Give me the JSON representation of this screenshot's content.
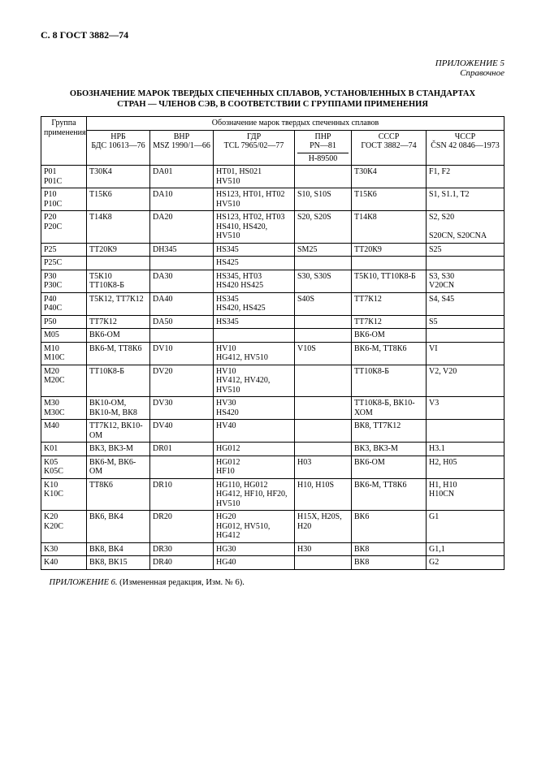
{
  "header": {
    "left": "С. 8 ГОСТ 3882—74",
    "appendix1": "ПРИЛОЖЕНИЕ 5",
    "appendix2": "Справочное",
    "title1": "ОБОЗНАЧЕНИЕ МАРОК ТВЕРДЫХ СПЕЧЕННЫХ СПЛАВОВ, УСТАНОВЛЕННЫХ В СТАНДАРТАХ",
    "title2": "СТРАН — ЧЛЕНОВ СЭВ, В СООТВЕТСТВИИ С ГРУППАМИ ПРИМЕНЕНИЯ"
  },
  "thead": {
    "group": "Группа применения",
    "top": "Обозначение марок твердых спеченных сплавов",
    "cols": [
      {
        "a": "НРБ",
        "b": "БДС 10613—76"
      },
      {
        "a": "ВНР",
        "b": "MSZ 1990/1—66"
      },
      {
        "a": "ГДР",
        "b": "TCL 7965/02—77"
      },
      {
        "a": "ПНР",
        "b": "PN—81",
        "c": "H-89500"
      },
      {
        "a": "СССР",
        "b": "ГОСТ 3882—74"
      },
      {
        "a": "ЧССР",
        "b": "ČSN 42 0846—1973"
      }
    ]
  },
  "rows": [
    [
      "P01\nP01С",
      "Т30К4",
      "DA01",
      "HT01, HS021\nHV510",
      "",
      "Т30К4",
      "F1, F2"
    ],
    [
      "P10\nP10С",
      "Т15К6",
      "DA10",
      "HS123, HT01, HT02\nHV510",
      "S10, S10S",
      "Т15К6",
      "S1, S1.1, T2"
    ],
    [
      "P20\nP20С",
      "Т14К8",
      "DA20",
      "HS123, HT02, HT03\nHS410, HS420, HV510",
      "S20, S20S",
      "Т14К8",
      "S2, S20\n\nS20CN, S20CNA"
    ],
    [
      "P25",
      "ТТ20К9",
      "DH345",
      "HS345",
      "SM25",
      "ТТ20К9",
      "S25"
    ],
    [
      "P25С",
      "",
      "",
      "HS425",
      "",
      "",
      ""
    ],
    [
      "P30\nP30С",
      "Т5К10\nТТ10К8-Б",
      "DA30",
      "HS345, HT03\nHS420 HS425",
      "S30, S30S",
      "Т5К10, ТТ10К8-Б",
      "S3, S30\nV20CN"
    ],
    [
      "P40\nP40С",
      "Т5К12, ТТ7К12",
      "DA40",
      "HS345\nHS420, HS425",
      "S40S",
      "ТТ7К12",
      "S4, S45"
    ],
    [
      "P50",
      "ТТ7К12",
      "DA50",
      "HS345",
      "",
      "ТТ7К12",
      "S5"
    ],
    [
      "M05",
      "ВК6-ОМ",
      "",
      "",
      "",
      "ВК6-ОМ",
      ""
    ],
    [
      "M10\nM10С",
      "ВК6-М, ТТ8К6",
      "DV10",
      "HV10\nHG412, HV510",
      "V10S",
      "ВК6-М, ТТ8К6",
      "VI"
    ],
    [
      "M20\nM20С",
      "ТТ10К8-Б",
      "DV20",
      "HV10\nHV412, HV420, HV510",
      "",
      "ТТ10К8-Б",
      "V2, V20"
    ],
    [
      "M30\nM30С",
      "ВК10-ОМ, ВК10-М, ВК8",
      "DV30",
      "HV30\nHS420",
      "",
      "ТТ10К8-Б, ВК10-ХОМ",
      "V3"
    ],
    [
      "M40",
      "ТТ7К12, ВК10-ОМ",
      "DV40",
      "HV40",
      "",
      "ВК8, ТТ7К12",
      ""
    ],
    [
      "K01",
      "ВК3, ВК3-М",
      "DR01",
      "HG012",
      "",
      "ВК3, ВК3-М",
      "H3.1"
    ],
    [
      "K05\nK05С",
      "ВК6-М, ВК6-ОМ",
      "",
      "HG012\nHF10",
      "H03",
      "ВК6-ОМ",
      "H2, H05"
    ],
    [
      "K10\nK10С",
      "ТТ8К6",
      "DR10",
      "HG110, HG012\nHG412, HF10, HF20, HV510",
      "H10, H10S",
      "ВК6-М, ТТ8К6",
      "H1, H10\nH10CN"
    ],
    [
      "K20\nK20С",
      "ВК6, ВК4",
      "DR20",
      "HG20\nHG012, HV510, HG412",
      "H15X, H20S, H20",
      "ВК6",
      "G1"
    ],
    [
      "K30",
      "ВК8, ВК4",
      "DR30",
      "HG30",
      "H30",
      "ВК8",
      "G1,1"
    ],
    [
      "K40",
      "ВК8, ВК15",
      "DR40",
      "HG40",
      "",
      "ВК8",
      "G2"
    ]
  ],
  "footer": {
    "label": "ПРИЛОЖЕНИЕ 6. ",
    "text": "(Измененная редакция, Изм. № 6)."
  }
}
